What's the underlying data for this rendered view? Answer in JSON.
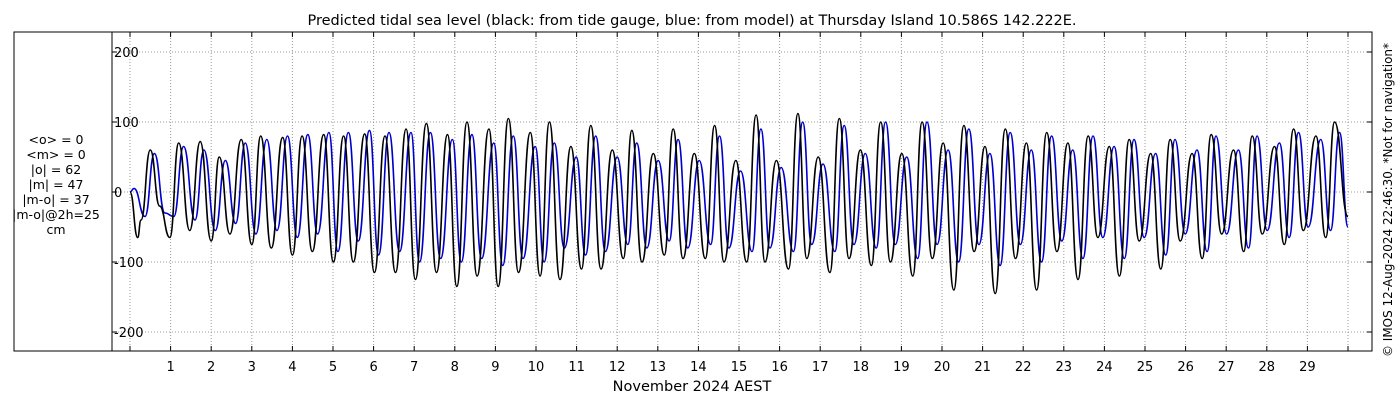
{
  "chart_data": {
    "type": "line",
    "title": "Predicted tidal sea level (black: from tide gauge, blue: from model) at Thursday Island 10.586S 142.222E.",
    "xlabel": "November 2024 AEST",
    "ylabel": "",
    "ylim": [
      -210,
      210
    ],
    "xlim": [
      0,
      30
    ],
    "yticks": [
      200,
      100,
      0,
      -100,
      -200
    ],
    "xticks": [
      1,
      2,
      3,
      4,
      5,
      6,
      7,
      8,
      9,
      10,
      11,
      12,
      13,
      14,
      15,
      16,
      17,
      18,
      19,
      20,
      21,
      22,
      23,
      24,
      25,
      26,
      27,
      28,
      29
    ],
    "grid": true,
    "colors": {
      "gauge": "#000000",
      "model": "#0000cc",
      "grid": "#999999"
    },
    "series": [
      {
        "name": "from tide gauge",
        "color": "#000000",
        "x": [
          0,
          0.19,
          0.27,
          0.5,
          0.73,
          0.98,
          1.2,
          1.47,
          1.73,
          2.0,
          2.2,
          2.46,
          2.74,
          3.0,
          3.22,
          3.48,
          3.76,
          4.0,
          4.24,
          4.49,
          4.77,
          5.01,
          5.26,
          5.5,
          5.78,
          6.02,
          6.28,
          6.54,
          6.8,
          7.03,
          7.3,
          7.55,
          7.82,
          8.05,
          8.3,
          8.55,
          8.84,
          9.07,
          9.32,
          9.57,
          9.86,
          10.1,
          10.33,
          10.59,
          10.86,
          11.12,
          11.35,
          11.6,
          11.88,
          12.15,
          12.36,
          12.61,
          12.89,
          13.16,
          13.38,
          13.62,
          13.9,
          14.17,
          14.4,
          14.63,
          14.92,
          15.19,
          15.42,
          15.64,
          15.92,
          16.22,
          16.45,
          16.67,
          16.95,
          17.24,
          17.47,
          17.71,
          17.99,
          18.26,
          18.49,
          18.73,
          19.01,
          19.28,
          19.51,
          19.76,
          20.03,
          20.29,
          20.54,
          20.79,
          21.06,
          21.31,
          21.56,
          21.81,
          22.08,
          22.33,
          22.58,
          22.83,
          23.1,
          23.35,
          23.6,
          23.84,
          24.12,
          24.37,
          24.61,
          24.86,
          25.14,
          25.39,
          25.62,
          25.87,
          26.16,
          26.41,
          26.63,
          26.89,
          27.18,
          27.43,
          27.64,
          27.89,
          28.19,
          28.43,
          28.66,
          28.9,
          29.21,
          29.45,
          29.67,
          30.0
        ],
        "y": [
          0,
          -65,
          -40,
          60,
          -20,
          -65,
          70,
          -55,
          72,
          -70,
          50,
          -60,
          75,
          -75,
          80,
          -80,
          78,
          -90,
          80,
          -85,
          82,
          -100,
          80,
          -100,
          83,
          -115,
          80,
          -115,
          90,
          -125,
          98,
          -115,
          82,
          -135,
          100,
          -120,
          90,
          -135,
          105,
          -115,
          85,
          -120,
          100,
          -125,
          65,
          -110,
          95,
          -110,
          60,
          -95,
          88,
          -100,
          55,
          -90,
          90,
          -95,
          55,
          -95,
          95,
          -100,
          45,
          -100,
          110,
          -100,
          45,
          -110,
          112,
          -95,
          50,
          -115,
          105,
          -95,
          60,
          -105,
          100,
          -100,
          55,
          -120,
          100,
          -95,
          70,
          -140,
          95,
          -85,
          65,
          -145,
          90,
          -95,
          70,
          -140,
          85,
          -85,
          70,
          -125,
          80,
          -65,
          65,
          -120,
          75,
          -70,
          55,
          -110,
          75,
          -70,
          55,
          -95,
          82,
          -60,
          60,
          -85,
          80,
          -60,
          65,
          -75,
          90,
          -55,
          80,
          -65,
          100,
          -35
        ]
      },
      {
        "name": "from model",
        "color": "#0000cc",
        "x": [
          0,
          0.1,
          0.37,
          0.6,
          0.86,
          1.08,
          1.32,
          1.6,
          1.82,
          2.1,
          2.35,
          2.6,
          2.84,
          3.1,
          3.37,
          3.62,
          3.88,
          4.12,
          4.38,
          4.62,
          4.9,
          5.12,
          5.38,
          5.62,
          5.9,
          6.12,
          6.38,
          6.64,
          6.92,
          7.13,
          7.4,
          7.65,
          7.94,
          8.16,
          8.42,
          8.66,
          8.96,
          9.18,
          9.44,
          9.68,
          9.98,
          10.2,
          10.45,
          10.7,
          10.99,
          11.22,
          11.47,
          11.71,
          12.0,
          12.26,
          12.48,
          12.73,
          13.01,
          13.28,
          13.5,
          13.74,
          14.02,
          14.3,
          14.52,
          14.75,
          15.04,
          15.32,
          15.54,
          15.76,
          16.04,
          16.34,
          16.57,
          16.79,
          17.07,
          17.36,
          17.59,
          17.83,
          18.11,
          18.38,
          18.61,
          18.85,
          19.13,
          19.4,
          19.63,
          19.88,
          20.15,
          20.41,
          20.66,
          20.91,
          21.18,
          21.43,
          21.68,
          21.93,
          22.2,
          22.45,
          22.7,
          22.95,
          23.22,
          23.47,
          23.72,
          23.96,
          24.24,
          24.49,
          24.73,
          24.98,
          25.26,
          25.51,
          25.74,
          25.99,
          26.28,
          26.53,
          26.75,
          27.01,
          27.3,
          27.55,
          27.76,
          28.01,
          28.31,
          28.55,
          28.78,
          29.02,
          29.33,
          29.57,
          29.79,
          30.0
        ],
        "y": [
          0,
          5,
          -35,
          55,
          -30,
          -35,
          65,
          -40,
          60,
          -55,
          45,
          -45,
          70,
          -60,
          75,
          -55,
          80,
          -65,
          82,
          -60,
          85,
          -85,
          85,
          -70,
          88,
          -90,
          85,
          -85,
          85,
          -100,
          85,
          -95,
          75,
          -100,
          82,
          -95,
          70,
          -105,
          80,
          -95,
          65,
          -100,
          70,
          -80,
          50,
          -90,
          80,
          -85,
          50,
          -75,
          70,
          -80,
          45,
          -70,
          75,
          -80,
          45,
          -75,
          80,
          -80,
          30,
          -85,
          90,
          -80,
          35,
          -85,
          100,
          -75,
          40,
          -85,
          95,
          -75,
          55,
          -80,
          100,
          -75,
          50,
          -95,
          100,
          -75,
          60,
          -100,
          90,
          -75,
          55,
          -105,
          85,
          -75,
          60,
          -100,
          80,
          -70,
          60,
          -95,
          80,
          -65,
          65,
          -95,
          75,
          -65,
          55,
          -90,
          75,
          -60,
          60,
          -85,
          80,
          -60,
          60,
          -80,
          80,
          -55,
          70,
          -65,
          85,
          -50,
          75,
          -55,
          85,
          -50
        ]
      }
    ]
  },
  "stats": {
    "mean_obs": "<o> = 0",
    "mean_model": "<m> = 0",
    "abs_obs": "|o| = 62",
    "abs_model": "|m| = 47",
    "abs_diff": "|m-o| = 37",
    "abs_diff_2h": "|m-o|@2h=25",
    "unit": "cm"
  },
  "credit": "© IMOS 12-Aug-2024 22:46:30. *Not for navigation*"
}
